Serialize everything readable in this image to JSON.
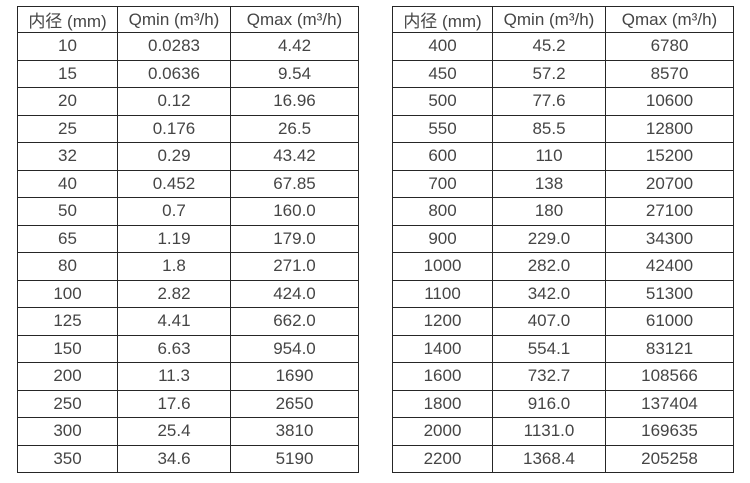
{
  "page": {
    "background_color": "#ffffff",
    "text_color": "#454545",
    "border_color": "#262626"
  },
  "tables": [
    {
      "name": "flow-range-table-small-diameters",
      "headers": [
        "内径 (mm)",
        "Qmin (m³/h)",
        "Qmax (m³/h)"
      ],
      "rows": [
        [
          "10",
          "0.0283",
          "4.42"
        ],
        [
          "15",
          "0.0636",
          "9.54"
        ],
        [
          "20",
          "0.12",
          "16.96"
        ],
        [
          "25",
          "0.176",
          "26.5"
        ],
        [
          "32",
          "0.29",
          "43.42"
        ],
        [
          "40",
          "0.452",
          "67.85"
        ],
        [
          "50",
          "0.7",
          "160.0"
        ],
        [
          "65",
          "1.19",
          "179.0"
        ],
        [
          "80",
          "1.8",
          "271.0"
        ],
        [
          "100",
          "2.82",
          "424.0"
        ],
        [
          "125",
          "4.41",
          "662.0"
        ],
        [
          "150",
          "6.63",
          "954.0"
        ],
        [
          "200",
          "11.3",
          "1690"
        ],
        [
          "250",
          "17.6",
          "2650"
        ],
        [
          "300",
          "25.4",
          "3810"
        ],
        [
          "350",
          "34.6",
          "5190"
        ]
      ]
    },
    {
      "name": "flow-range-table-large-diameters",
      "headers": [
        "内径 (mm)",
        "Qmin (m³/h)",
        "Qmax (m³/h)"
      ],
      "rows": [
        [
          "400",
          "45.2",
          "6780"
        ],
        [
          "450",
          "57.2",
          "8570"
        ],
        [
          "500",
          "77.6",
          "10600"
        ],
        [
          "550",
          "85.5",
          "12800"
        ],
        [
          "600",
          "110",
          "15200"
        ],
        [
          "700",
          "138",
          "20700"
        ],
        [
          "800",
          "180",
          "27100"
        ],
        [
          "900",
          "229.0",
          "34300"
        ],
        [
          "1000",
          "282.0",
          "42400"
        ],
        [
          "1100",
          "342.0",
          "51300"
        ],
        [
          "1200",
          "407.0",
          "61000"
        ],
        [
          "1400",
          "554.1",
          "83121"
        ],
        [
          "1600",
          "732.7",
          "108566"
        ],
        [
          "1800",
          "916.0",
          "137404"
        ],
        [
          "2000",
          "1131.0",
          "169635"
        ],
        [
          "2200",
          "1368.4",
          "205258"
        ]
      ]
    }
  ],
  "cell_names": [
    "diameter-cell",
    "qmin-cell",
    "qmax-cell"
  ]
}
